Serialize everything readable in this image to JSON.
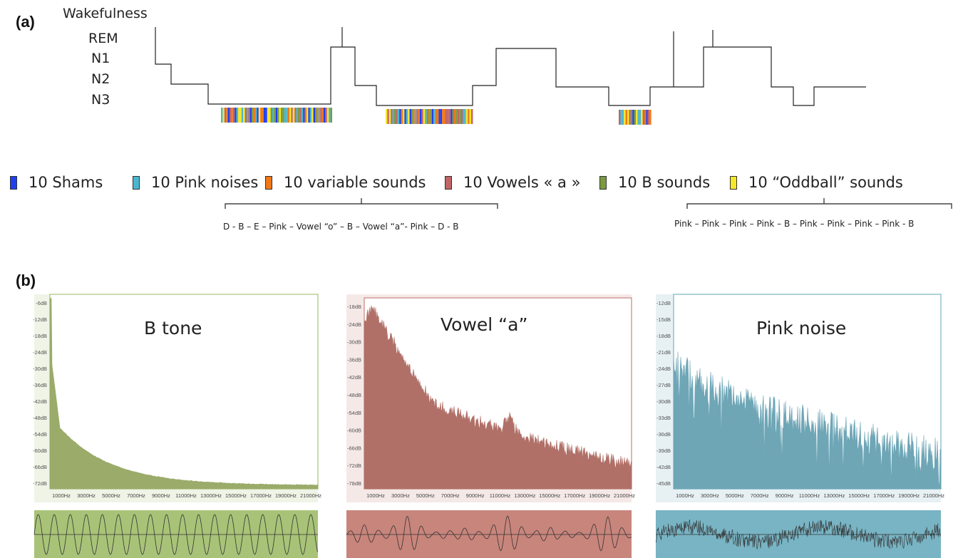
{
  "panel_a": {
    "label": "(a)",
    "stages": [
      "Wakefulness",
      "REM",
      "N1",
      "N2",
      "N3"
    ],
    "legend": [
      {
        "label": "10 Shams",
        "color": "#1f3ff0"
      },
      {
        "label": "10 Pink noises",
        "color": "#4ab6d0"
      },
      {
        "label": "10 variable sounds",
        "color": "#f07818"
      },
      {
        "label": "10  Vowels « a »",
        "color": "#c06464"
      },
      {
        "label": "10 B sounds",
        "color": "#7a9a40"
      },
      {
        "label": "10 “Oddball” sounds",
        "color": "#f5e628"
      }
    ],
    "sequence_variable": "D - B – E – Pink – Vowel “o” – B – Vowel “a”- Pink – D - B",
    "sequence_oddball": "Pink – Pink – Pink – Pink – B – Pink – Pink – Pink – Pink - B"
  },
  "panel_b": {
    "label": "(b)",
    "spectra": [
      {
        "title": "B tone",
        "db_ticks": [
          "-6dB",
          "-12dB",
          "-18dB",
          "-24dB",
          "-30dB",
          "-36dB",
          "-42dB",
          "-48dB",
          "-54dB",
          "-60dB",
          "-66dB",
          "-72dB"
        ],
        "hz_ticks": [
          "1000Hz",
          "3000Hz",
          "5000Hz",
          "7000Hz",
          "9000Hz",
          "11000Hz",
          "13000Hz",
          "15000Hz",
          "17000Hz",
          "19000Hz",
          "21000Hz"
        ],
        "fill": "#9aab6a",
        "bg": "#a8c377"
      },
      {
        "title": "Vowel “a”",
        "db_ticks": [
          "-18dB",
          "-24dB",
          "-30dB",
          "-36dB",
          "-42dB",
          "-48dB",
          "-54dB",
          "-60dB",
          "-66dB",
          "-72dB",
          "-78dB"
        ],
        "hz_ticks": [
          "1000Hz",
          "3000Hz",
          "5000Hz",
          "7000Hz",
          "9000Hz",
          "11000Hz",
          "13000Hz",
          "15000Hz",
          "17000Hz",
          "19000Hz",
          "21000Hz"
        ],
        "fill": "#b07068",
        "bg": "#c8857c"
      },
      {
        "title": "Pink noise",
        "db_ticks": [
          "-12dB",
          "-15dB",
          "-18dB",
          "-21dB",
          "-24dB",
          "-27dB",
          "-30dB",
          "-33dB",
          "-36dB",
          "-39dB",
          "-42dB",
          "-45dB"
        ],
        "hz_ticks": [
          "1000Hz",
          "3000Hz",
          "5000Hz",
          "7000Hz",
          "9000Hz",
          "11000Hz",
          "13000Hz",
          "15000Hz",
          "17000Hz",
          "19000Hz",
          "21000Hz"
        ],
        "fill": "#6ea6b6",
        "bg": "#78b4c4"
      }
    ]
  }
}
